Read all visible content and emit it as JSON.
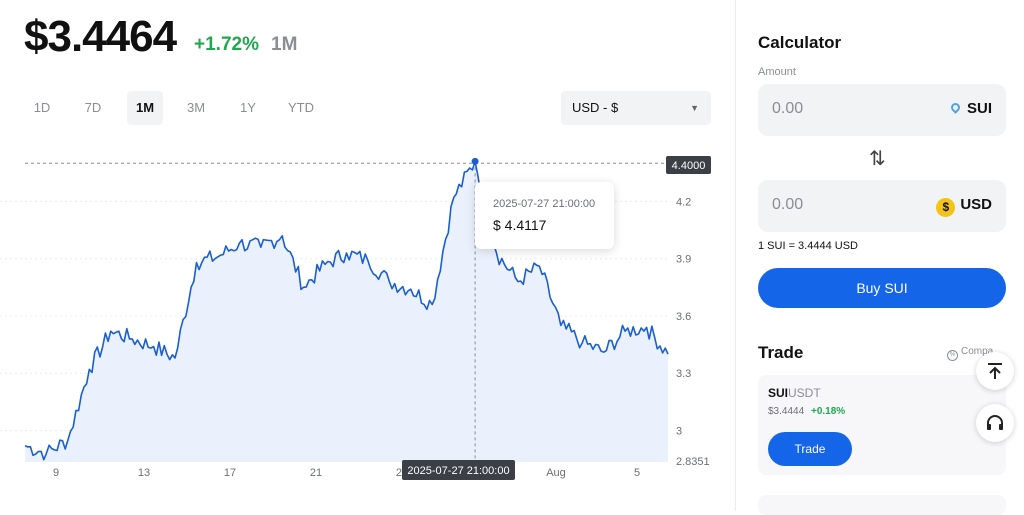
{
  "header": {
    "price": "$3.4464",
    "change": "+1.72%",
    "period": "1M"
  },
  "ranges": [
    "1D",
    "7D",
    "1M",
    "3M",
    "1Y",
    "YTD"
  ],
  "active_range": "1M",
  "currency_select": {
    "value": "USD - $"
  },
  "tooltip": {
    "time": "2025-07-27 21:00:00",
    "price": "$ 4.4117"
  },
  "crosshair": {
    "x_label": "2025-07-27 21:00:00",
    "y_label": "4.4000"
  },
  "chart_data": {
    "type": "area",
    "x_ticks": [
      "9",
      "13",
      "17",
      "21",
      "25",
      "Aug",
      "5"
    ],
    "y_ticks": [
      "4.2",
      "3.9",
      "3.6",
      "3.3",
      "3"
    ],
    "y_min_label": "2.8351",
    "ylim": [
      2.8351,
      4.46
    ],
    "grid": true,
    "line_color": "#1a5fd0",
    "fill_color": "#eaf1fd",
    "x": [
      "Jul 7",
      "Jul 8",
      "Jul 9",
      "Jul 10",
      "Jul 11",
      "Jul 12",
      "Jul 13",
      "Jul 14",
      "Jul 15",
      "Jul 16",
      "Jul 17",
      "Jul 18",
      "Jul 19",
      "Jul 20",
      "Jul 21",
      "Jul 22",
      "Jul 23",
      "Jul 24",
      "Jul 25",
      "Jul 26",
      "Jul 27",
      "Jul 28",
      "Jul 29",
      "Jul 30",
      "Jul 31",
      "Aug 1",
      "Aug 2",
      "Aug 3",
      "Aug 4",
      "Aug 5",
      "Aug 6"
    ],
    "values": [
      2.92,
      2.88,
      2.95,
      3.32,
      3.52,
      3.48,
      3.44,
      3.38,
      3.88,
      3.91,
      3.98,
      3.96,
      4.02,
      3.75,
      3.87,
      3.93,
      3.89,
      3.78,
      3.74,
      3.66,
      4.22,
      4.41,
      3.93,
      3.78,
      3.86,
      3.55,
      3.46,
      3.41,
      3.52,
      3.54,
      3.4
    ]
  },
  "calculator": {
    "title": "Calculator",
    "amount_label": "Amount",
    "from": {
      "value": "0.00",
      "currency": "SUI"
    },
    "to": {
      "value": "0.00",
      "currency": "USD",
      "coin_symbol": "$"
    },
    "swap_symbol": "⇅",
    "rate": "1 SUI = 3.4444 USD",
    "buy_label": "Buy SUI"
  },
  "trade": {
    "title": "Trade",
    "compare_label": "Compa",
    "pair_base": "SUI",
    "pair_quote": "USDT",
    "price": "$3.4444",
    "change": "+0.18%",
    "button": "Trade"
  },
  "icons": {
    "fab_top": "arrow-up-to-top-icon",
    "fab_support": "headset-icon"
  },
  "colors": {
    "accent": "#1565e8",
    "positive": "#1fa84f",
    "muted": "#8a8d94"
  }
}
